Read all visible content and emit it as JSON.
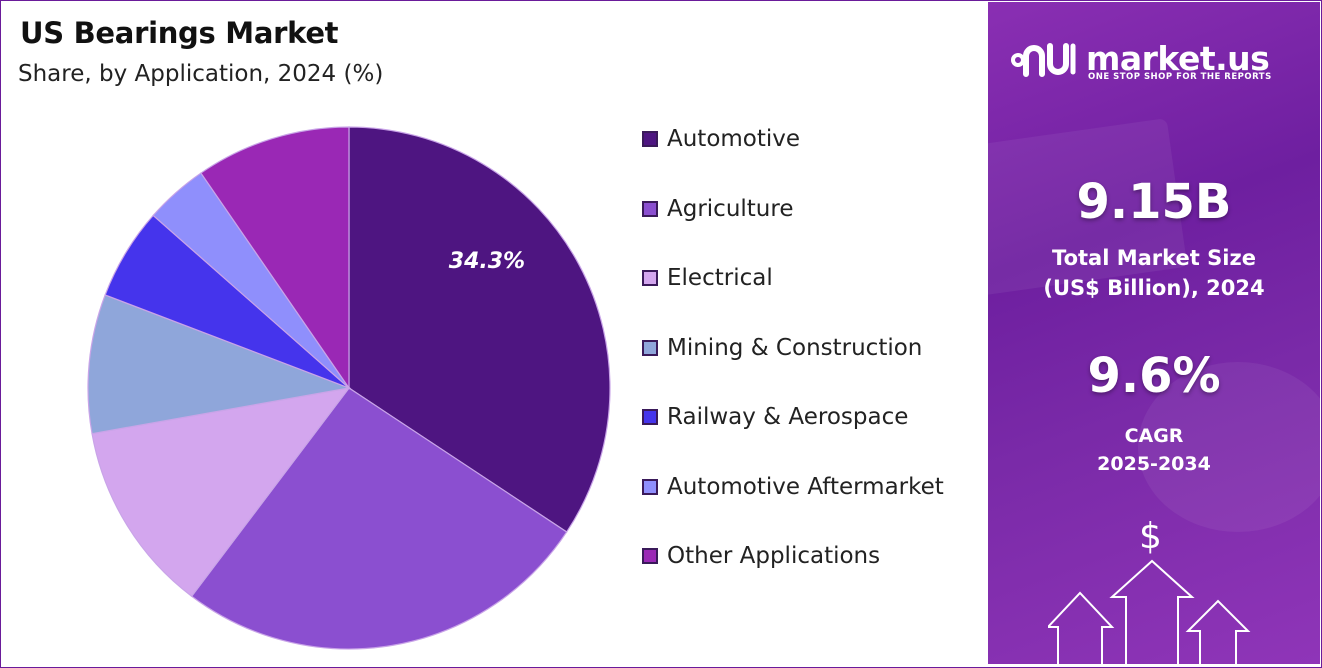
{
  "header": {
    "title": "US Bearings Market",
    "subtitle": "Share, by Application, 2024 (%)"
  },
  "chart_data": {
    "type": "pie",
    "title": "US Bearings Market",
    "subtitle": "Share, by Application, 2024 (%)",
    "categories": [
      "Automotive",
      "Agriculture",
      "Electrical",
      "Mining & Construction",
      "Railway & Aerospace",
      "Automotive Aftermarket",
      "Other Applications"
    ],
    "values": [
      34.3,
      26.0,
      11.9,
      8.6,
      5.7,
      3.9,
      9.6
    ],
    "colors": [
      "#4e1581",
      "#8b4fd0",
      "#d3a6ee",
      "#8fa6da",
      "#4534ec",
      "#8f8ffc",
      "#9a28b5"
    ],
    "data_labels": [
      "34.3%",
      "",
      "",
      "",
      "",
      "",
      ""
    ],
    "legend_position": "right",
    "start_angle": "12 o'clock",
    "direction": "clockwise"
  },
  "brand": {
    "name": "market.us",
    "tagline": "ONE STOP SHOP FOR THE REPORTS",
    "icon": "market-us-logo-icon"
  },
  "stats": {
    "market_size_value": "9.15B",
    "market_size_label_line1": "Total Market Size",
    "market_size_label_line2": "(US$ Billion), 2024",
    "cagr_value": "9.6%",
    "cagr_label": "CAGR",
    "cagr_period": "2025-2034"
  },
  "decoration": {
    "currency_icon": "dollar-sign-icon",
    "currency_symbol": "$",
    "arrow_icon": "up-arrow-outline-icon"
  },
  "colors": {
    "panel_gradient_start": "#8a2fb3",
    "panel_gradient_end": "#6e1fa0",
    "border": "#6a1b9a"
  }
}
